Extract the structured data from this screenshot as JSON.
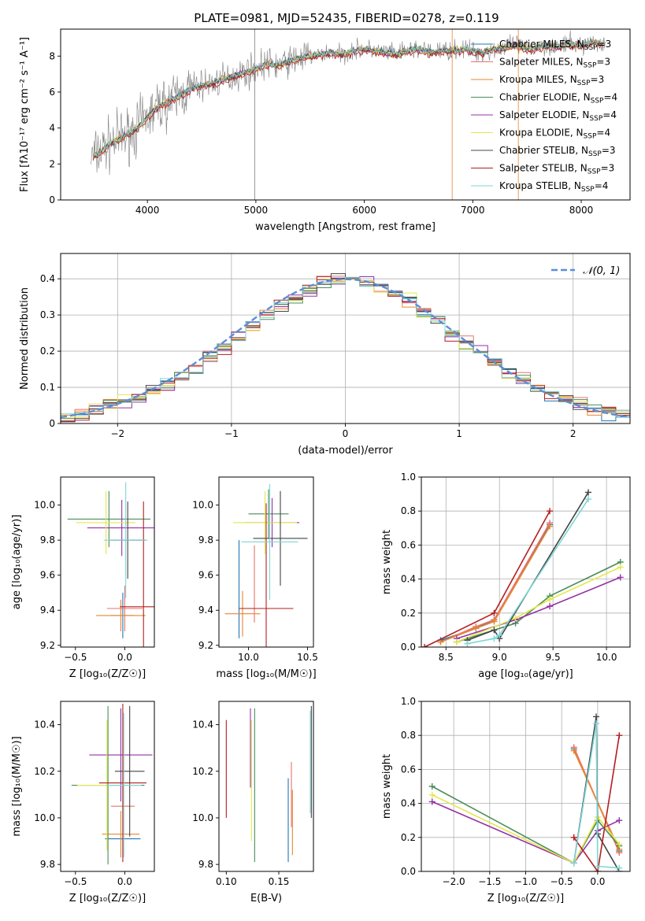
{
  "figure": {
    "title": "PLATE=0981, MJD=52435, FIBERID=0278, z=0.119"
  },
  "series": [
    {
      "name": "Chabrier MILES",
      "nssp": "3",
      "color": "#1f77b4"
    },
    {
      "name": "Salpeter MILES",
      "nssp": "3",
      "color": "#e8736c"
    },
    {
      "name": "Kroupa MILES",
      "nssp": "3",
      "color": "#e8862e"
    },
    {
      "name": "Chabrier ELODIE",
      "nssp": "4",
      "color": "#4c8c5a"
    },
    {
      "name": "Salpeter ELODIE",
      "nssp": "4",
      "color": "#9431a8"
    },
    {
      "name": "Kroupa ELODIE",
      "nssp": "4",
      "color": "#e3e84c"
    },
    {
      "name": "Chabrier STELIB",
      "nssp": "3",
      "color": "#444444"
    },
    {
      "name": "Salpeter STELIB",
      "nssp": "3",
      "color": "#b21f1f"
    },
    {
      "name": "Kroupa STELIB",
      "nssp": "4",
      "color": "#7fd6d6"
    }
  ],
  "chart_data": [
    {
      "id": "spectrum",
      "type": "line",
      "xlabel": "wavelength [Angstrom, rest frame]",
      "ylabel": "Flux [fλ10⁻¹⁷ erg cm⁻² s⁻¹ A⁻¹]",
      "xlim": [
        3200,
        8450
      ],
      "ylim": [
        0,
        9.5
      ],
      "xticks": [
        4000,
        5000,
        6000,
        7000,
        8000
      ],
      "yticks": [
        0,
        2,
        4,
        6,
        8
      ],
      "grid": false,
      "legend": "top-right",
      "data_x": [
        3500,
        3600,
        3700,
        3800,
        3900,
        4000,
        4100,
        4200,
        4300,
        4400,
        4500,
        4600,
        4700,
        4800,
        4900,
        5000,
        5100,
        5200,
        5300,
        5400,
        5500,
        5600,
        5700,
        5800,
        5900,
        6000,
        6100,
        6200,
        6300,
        6400,
        6500,
        6600,
        6700,
        6800,
        6900,
        7000,
        7100,
        7200,
        7300,
        7400,
        7500,
        7600,
        7700,
        7800,
        7900,
        8000,
        8100,
        8200
      ],
      "data_y": [
        2.4,
        2.9,
        3.3,
        3.6,
        4.0,
        4.6,
        5.2,
        5.5,
        5.8,
        6.2,
        6.4,
        6.5,
        6.7,
        6.9,
        7.1,
        7.3,
        7.6,
        7.5,
        7.7,
        7.9,
        8.0,
        8.1,
        8.2,
        8.1,
        8.3,
        8.4,
        8.3,
        8.2,
        8.1,
        8.3,
        8.4,
        8.2,
        8.3,
        8.3,
        8.4,
        8.3,
        8.2,
        8.4,
        8.5,
        8.6,
        8.4,
        8.5,
        8.6,
        8.5,
        8.7,
        8.6,
        8.8,
        8.7
      ]
    },
    {
      "id": "residuals",
      "type": "line",
      "xlabel": "(data-model)/error",
      "ylabel": "Normed distribution",
      "xlim": [
        -2.5,
        2.5
      ],
      "ylim": [
        0,
        0.47
      ],
      "xticks": [
        -2,
        -1,
        0,
        1,
        2
      ],
      "yticks": [
        0.0,
        0.1,
        0.2,
        0.3,
        0.4
      ],
      "xtick_labels": [
        "−2",
        "−1",
        "0",
        "1",
        "2"
      ],
      "grid": true,
      "legend": "top-right",
      "reference_label": "𝒩(0, 1)",
      "bin_edges": [
        -2.5,
        -2.375,
        -2.25,
        -2.125,
        -2.0,
        -1.875,
        -1.75,
        -1.625,
        -1.5,
        -1.375,
        -1.25,
        -1.125,
        -1.0,
        -0.875,
        -0.75,
        -0.625,
        -0.5,
        -0.375,
        -0.25,
        -0.125,
        0.0,
        0.125,
        0.25,
        0.375,
        0.5,
        0.625,
        0.75,
        0.875,
        1.0,
        1.125,
        1.25,
        1.375,
        1.5,
        1.625,
        1.75,
        1.875,
        2.0,
        2.125,
        2.25,
        2.375,
        2.5
      ],
      "hist_mean": [
        0.02,
        0.03,
        0.04,
        0.05,
        0.06,
        0.07,
        0.09,
        0.11,
        0.13,
        0.15,
        0.18,
        0.21,
        0.24,
        0.27,
        0.3,
        0.33,
        0.35,
        0.37,
        0.39,
        0.4,
        0.4,
        0.39,
        0.38,
        0.36,
        0.34,
        0.31,
        0.28,
        0.25,
        0.22,
        0.19,
        0.16,
        0.14,
        0.12,
        0.1,
        0.08,
        0.07,
        0.05,
        0.04,
        0.03,
        0.03
      ]
    },
    {
      "id": "age-vs-Z",
      "type": "scatter",
      "xlabel": "Z [log₁₀(Z/Z☉)]",
      "ylabel": "age  [log₁₀(age/yr)]",
      "xlim": [
        -0.65,
        0.3
      ],
      "ylim": [
        9.19,
        10.16
      ],
      "xticks": [
        -0.5,
        0.0
      ],
      "yticks": [
        9.2,
        9.4,
        9.6,
        9.8,
        10.0
      ],
      "xtick_labels": [
        "−0.5",
        "0.0"
      ],
      "ytick_labels": [
        "9.2",
        "9.4",
        "9.6",
        "9.8",
        "10.0"
      ],
      "points": [
        {
          "x": -0.02,
          "y": 9.37,
          "xerr": 0.12,
          "yerr": 0.13
        },
        {
          "x": 0.0,
          "y": 9.41,
          "xerr": 0.18,
          "yerr": 0.13
        },
        {
          "x": -0.04,
          "y": 9.37,
          "xerr": 0.25,
          "yerr": 0.09
        },
        {
          "x": -0.16,
          "y": 9.92,
          "xerr": 0.42,
          "yerr": 0.16
        },
        {
          "x": -0.03,
          "y": 9.87,
          "xerr": 0.35,
          "yerr": 0.16
        },
        {
          "x": -0.19,
          "y": 9.9,
          "xerr": 0.3,
          "yerr": 0.18
        },
        {
          "x": 0.03,
          "y": 9.8,
          "xerr": 0.18,
          "yerr": 0.22
        },
        {
          "x": 0.19,
          "y": 9.42,
          "xerr": 0.24,
          "yerr": 0.6
        },
        {
          "x": 0.01,
          "y": 9.8,
          "xerr": 0.22,
          "yerr": 0.33
        }
      ]
    },
    {
      "id": "age-vs-mass",
      "type": "scatter",
      "xlabel": "mass [log₁₀(M/M☉)]",
      "ylabel": "",
      "xlim": [
        9.75,
        10.55
      ],
      "ylim": [
        9.19,
        10.16
      ],
      "xticks": [
        10.0,
        10.5
      ],
      "yticks": [
        9.2,
        9.4,
        9.6,
        9.8,
        10.0
      ],
      "xtick_labels": [
        "10.0",
        "10.5"
      ],
      "ytick_labels": [
        "9.2",
        "9.4",
        "9.6",
        "9.8",
        "10.0"
      ],
      "points": [
        {
          "x": 9.92,
          "y": 9.52,
          "xerr": 0.0,
          "yerr": 0.28
        },
        {
          "x": 10.05,
          "y": 9.55,
          "xerr": 0.0,
          "yerr": 0.22
        },
        {
          "x": 9.95,
          "y": 9.38,
          "xerr": 0.15,
          "yerr": 0.13
        },
        {
          "x": 10.17,
          "y": 9.95,
          "xerr": 0.17,
          "yerr": 0.14
        },
        {
          "x": 10.2,
          "y": 9.9,
          "xerr": 0.23,
          "yerr": 0.14
        },
        {
          "x": 10.14,
          "y": 9.9,
          "xerr": 0.27,
          "yerr": 0.18
        },
        {
          "x": 10.27,
          "y": 9.81,
          "xerr": 0.23,
          "yerr": 0.27
        },
        {
          "x": 10.15,
          "y": 9.41,
          "xerr": 0.23,
          "yerr": 0.6
        },
        {
          "x": 10.18,
          "y": 9.79,
          "xerr": 0.24,
          "yerr": 0.33
        }
      ]
    },
    {
      "id": "weight-vs-age",
      "type": "line",
      "xlabel": "age  [log₁₀(age/yr)]",
      "ylabel": "mass weight",
      "xlim": [
        8.27,
        10.22
      ],
      "ylim": [
        0.0,
        1.0
      ],
      "xticks": [
        8.5,
        9.0,
        9.5,
        10.0
      ],
      "yticks": [
        0.0,
        0.2,
        0.4,
        0.6,
        0.8,
        1.0
      ],
      "xtick_labels": [
        "8.5",
        "9.0",
        "9.5",
        "10.0"
      ],
      "ytick_labels": [
        "0.0",
        "0.2",
        "0.4",
        "0.6",
        "0.8",
        "1.0"
      ],
      "grid": true,
      "lines": [
        {
          "x": [
            8.45,
            8.78,
            8.95,
            9.47
          ],
          "y": [
            0.04,
            0.11,
            0.16,
            0.72
          ]
        },
        {
          "x": [
            8.45,
            8.78,
            8.95,
            9.47
          ],
          "y": [
            0.03,
            0.12,
            0.16,
            0.73
          ]
        },
        {
          "x": [
            8.45,
            8.78,
            8.95,
            9.47
          ],
          "y": [
            0.03,
            0.11,
            0.15,
            0.71
          ]
        },
        {
          "x": [
            8.6,
            9.15,
            9.47,
            10.13
          ],
          "y": [
            0.03,
            0.14,
            0.3,
            0.5
          ]
        },
        {
          "x": [
            8.6,
            9.15,
            9.47,
            10.13
          ],
          "y": [
            0.05,
            0.16,
            0.24,
            0.41
          ]
        },
        {
          "x": [
            8.6,
            9.15,
            9.47,
            10.13
          ],
          "y": [
            0.03,
            0.17,
            0.28,
            0.47
          ]
        },
        {
          "x": [
            8.7,
            8.95,
            9.0,
            9.83
          ],
          "y": [
            0.04,
            0.1,
            0.05,
            0.91
          ]
        },
        {
          "x": [
            8.3,
            8.95,
            9.47
          ],
          "y": [
            0.0,
            0.2,
            0.8
          ]
        },
        {
          "x": [
            8.7,
            8.95,
            9.0,
            9.83
          ],
          "y": [
            0.02,
            0.05,
            0.07,
            0.87
          ]
        }
      ]
    },
    {
      "id": "mass-vs-Z",
      "type": "scatter",
      "xlabel": "Z [log₁₀(Z/Z☉)]",
      "ylabel": "mass [log₁₀(M/M☉)]",
      "xlim": [
        -0.65,
        0.3
      ],
      "ylim": [
        9.77,
        10.5
      ],
      "xticks": [
        -0.5,
        0.0
      ],
      "yticks": [
        9.8,
        10.0,
        10.2,
        10.4
      ],
      "xtick_labels": [
        "−0.5",
        "0.0"
      ],
      "ytick_labels": [
        "9.8",
        "10.0",
        "10.2",
        "10.4"
      ],
      "points": [
        {
          "x": -0.02,
          "y": 9.91,
          "xerr": 0.18,
          "yerr": 0.0
        },
        {
          "x": -0.02,
          "y": 10.05,
          "xerr": 0.12,
          "yerr": 0.0
        },
        {
          "x": -0.04,
          "y": 9.93,
          "xerr": 0.19,
          "yerr": 0.1
        },
        {
          "x": -0.17,
          "y": 10.14,
          "xerr": 0.37,
          "yerr": 0.34
        },
        {
          "x": -0.04,
          "y": 10.27,
          "xerr": 0.32,
          "yerr": 0.2
        },
        {
          "x": -0.18,
          "y": 10.14,
          "xerr": 0.3,
          "yerr": 0.28
        },
        {
          "x": 0.05,
          "y": 10.2,
          "xerr": 0.15,
          "yerr": 0.28
        },
        {
          "x": -0.02,
          "y": 10.15,
          "xerr": 0.24,
          "yerr": 0.34
        },
        {
          "x": -0.01,
          "y": 10.14,
          "xerr": 0.18,
          "yerr": 0.31
        }
      ]
    },
    {
      "id": "mass-vs-ebv",
      "type": "scatter",
      "xlabel": "E(B-V)",
      "ylabel": "",
      "xlim": [
        0.093,
        0.183
      ],
      "ylim": [
        9.77,
        10.5
      ],
      "xticks": [
        0.1,
        0.15
      ],
      "yticks": [
        9.8,
        10.0,
        10.2,
        10.4
      ],
      "xtick_labels": [
        "0.10",
        "0.15"
      ],
      "ytick_labels": [
        "9.8",
        "10.0",
        "10.2",
        "10.4"
      ],
      "points": [
        {
          "x": 0.159,
          "y": 9.99,
          "xerr": 0.0,
          "yerr": 0.18
        },
        {
          "x": 0.162,
          "y": 10.1,
          "xerr": 0.0,
          "yerr": 0.14
        },
        {
          "x": 0.163,
          "y": 9.98,
          "xerr": 0.0,
          "yerr": 0.14
        },
        {
          "x": 0.127,
          "y": 10.14,
          "xerr": 0.0,
          "yerr": 0.33
        },
        {
          "x": 0.123,
          "y": 10.3,
          "xerr": 0.0,
          "yerr": 0.17
        },
        {
          "x": 0.124,
          "y": 10.16,
          "xerr": 0.0,
          "yerr": 0.26
        },
        {
          "x": 0.181,
          "y": 10.24,
          "xerr": 0.0,
          "yerr": 0.24
        },
        {
          "x": 0.1,
          "y": 10.21,
          "xerr": 0.0,
          "yerr": 0.21
        },
        {
          "x": 0.18,
          "y": 10.24,
          "xerr": 0.0,
          "yerr": 0.22
        }
      ]
    },
    {
      "id": "weight-vs-Z",
      "type": "line",
      "xlabel": "Z [log₁₀(Z/Z☉)]",
      "ylabel": "mass weight",
      "xlim": [
        -2.45,
        0.45
      ],
      "ylim": [
        0.0,
        1.0
      ],
      "xticks": [
        -2.0,
        -1.5,
        -1.0,
        -0.5,
        0.0
      ],
      "yticks": [
        0.0,
        0.2,
        0.4,
        0.6,
        0.8,
        1.0
      ],
      "xtick_labels": [
        "−2.0",
        "−1.5",
        "−1.0",
        "−0.5",
        "0.0"
      ],
      "ytick_labels": [
        "0.0",
        "0.2",
        "0.4",
        "0.6",
        "0.8",
        "1.0"
      ],
      "grid": true,
      "lines": [
        {
          "x": [
            -0.33,
            0.3
          ],
          "y": [
            0.72,
            0.12
          ]
        },
        {
          "x": [
            -0.33,
            0.3
          ],
          "y": [
            0.73,
            0.11
          ]
        },
        {
          "x": [
            -0.33,
            0.3
          ],
          "y": [
            0.71,
            0.13
          ]
        },
        {
          "x": [
            -2.3,
            -0.33,
            0.0,
            0.3
          ],
          "y": [
            0.5,
            0.05,
            0.3,
            0.15
          ]
        },
        {
          "x": [
            -2.3,
            -0.33,
            0.0,
            0.3
          ],
          "y": [
            0.41,
            0.05,
            0.24,
            0.3
          ]
        },
        {
          "x": [
            -2.3,
            -0.33,
            0.0,
            0.3
          ],
          "y": [
            0.45,
            0.05,
            0.32,
            0.16
          ]
        },
        {
          "x": [
            -0.33,
            -0.02,
            0.0,
            0.3
          ],
          "y": [
            0.05,
            0.91,
            0.22,
            0.0
          ]
        },
        {
          "x": [
            -0.33,
            0.0,
            0.3
          ],
          "y": [
            0.2,
            0.0,
            0.8
          ]
        },
        {
          "x": [
            -0.33,
            -0.02,
            0.0,
            0.3
          ],
          "y": [
            0.05,
            0.87,
            0.03,
            0.02
          ]
        }
      ]
    }
  ]
}
